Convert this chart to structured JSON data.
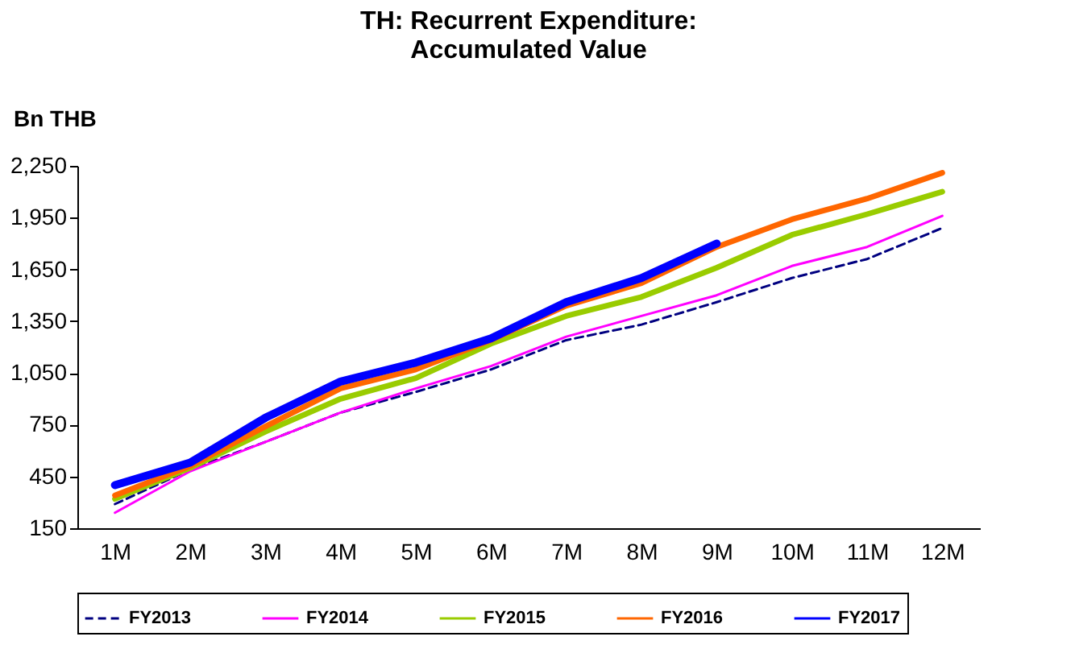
{
  "chart_data": {
    "type": "line",
    "title": "TH: Recurrent Expenditure:\nAccumulated Value",
    "ylabel": "Bn THB",
    "categories": [
      "1M",
      "2M",
      "3M",
      "4M",
      "5M",
      "6M",
      "7M",
      "8M",
      "9M",
      "10M",
      "11M",
      "12M"
    ],
    "ylim": [
      150,
      2250
    ],
    "yticks": [
      150,
      450,
      750,
      {
        "value": 1050,
        "label": "1,050"
      },
      {
        "value": 1350,
        "label": "1,350"
      },
      {
        "value": 1650,
        "label": "1,650"
      },
      {
        "value": 1950,
        "label": "1,950"
      },
      {
        "value": 2250,
        "label": "2,250"
      }
    ],
    "grid": false,
    "legend": "bottom",
    "marker": "none",
    "series": [
      {
        "name": "FY2013",
        "color": "#000080",
        "line_style": "dashed",
        "values": [
          290,
          490,
          650,
          820,
          940,
          1070,
          1240,
          1330,
          1460,
          1600,
          1710,
          1890
        ]
      },
      {
        "name": "FY2014",
        "color": "#ff00ff",
        "line_style": "solid",
        "values": [
          240,
          480,
          650,
          820,
          960,
          1090,
          1260,
          1380,
          1500,
          1670,
          1780,
          1960
        ]
      },
      {
        "name": "FY2015",
        "color": "#99cc00",
        "line_style": "solid",
        "values": [
          320,
          500,
          710,
          900,
          1020,
          1220,
          1380,
          1490,
          1660,
          1850,
          1970,
          2100
        ]
      },
      {
        "name": "FY2016",
        "color": "#ff6600",
        "line_style": "solid",
        "values": [
          340,
          510,
          740,
          960,
          1070,
          1240,
          1440,
          1570,
          1780,
          1940,
          2060,
          2210
        ]
      },
      {
        "name": "FY2017",
        "color": "#0000ff",
        "line_style": "solid",
        "values": [
          400,
          530,
          790,
          1000,
          1110,
          1250,
          1460,
          1600,
          1800,
          null,
          null,
          null
        ]
      }
    ]
  }
}
